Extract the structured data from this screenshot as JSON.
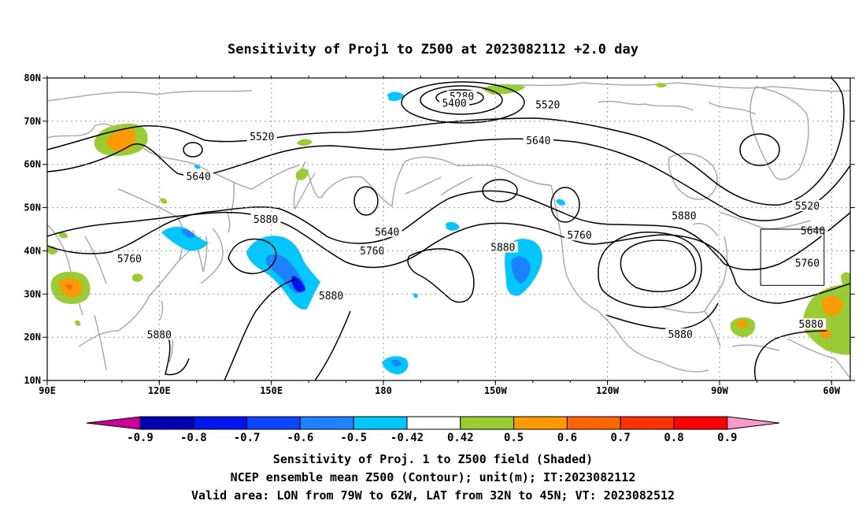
{
  "title": "Sensitivity of Proj1 to Z500 at 2023082112 +2.0 day",
  "map": {
    "lon_range": [
      90,
      305
    ],
    "lat_range": [
      10,
      80
    ],
    "lat_ticks": [
      {
        "value": 10,
        "label": "10N"
      },
      {
        "value": 20,
        "label": "20N"
      },
      {
        "value": 30,
        "label": "30N"
      },
      {
        "value": 40,
        "label": "40N"
      },
      {
        "value": 50,
        "label": "50N"
      },
      {
        "value": 60,
        "label": "60N"
      },
      {
        "value": 70,
        "label": "70N"
      },
      {
        "value": 80,
        "label": "80N"
      }
    ],
    "lon_ticks": [
      {
        "value": 90,
        "label": "90E"
      },
      {
        "value": 120,
        "label": "120E"
      },
      {
        "value": 150,
        "label": "150E"
      },
      {
        "value": 180,
        "label": "180"
      },
      {
        "value": 210,
        "label": "150W"
      },
      {
        "value": 240,
        "label": "120W"
      },
      {
        "value": 270,
        "label": "90W"
      },
      {
        "value": 300,
        "label": "60W"
      }
    ],
    "verification_box": {
      "lon": [
        281,
        298
      ],
      "lat": [
        32,
        45
      ]
    },
    "contour_labels": [
      {
        "text": "5280",
        "lon": 201,
        "lat": 75.6
      },
      {
        "text": "5400",
        "lon": 199,
        "lat": 74.1
      },
      {
        "text": "5520",
        "lon": 224,
        "lat": 73.7
      },
      {
        "text": "5520",
        "lon": 147.5,
        "lat": 66.3
      },
      {
        "text": "5640",
        "lon": 221.5,
        "lat": 65.4
      },
      {
        "text": "5640",
        "lon": 130.5,
        "lat": 57.1
      },
      {
        "text": "5880",
        "lon": 148.5,
        "lat": 47.2
      },
      {
        "text": "5640",
        "lon": 181,
        "lat": 44.3
      },
      {
        "text": "5760",
        "lon": 177,
        "lat": 39.9
      },
      {
        "text": "5880",
        "lon": 212,
        "lat": 40.7
      },
      {
        "text": "5760",
        "lon": 232.5,
        "lat": 43.5
      },
      {
        "text": "5880",
        "lon": 260.5,
        "lat": 48.0
      },
      {
        "text": "5520",
        "lon": 293.5,
        "lat": 50.3
      },
      {
        "text": "5640",
        "lon": 295,
        "lat": 44.5
      },
      {
        "text": "5760",
        "lon": 293.5,
        "lat": 37.1
      },
      {
        "text": "5760",
        "lon": 112,
        "lat": 38.1
      },
      {
        "text": "5880",
        "lon": 166,
        "lat": 29.5
      },
      {
        "text": "5880",
        "lon": 120,
        "lat": 20.5
      },
      {
        "text": "5880",
        "lon": 259.5,
        "lat": 20.6
      },
      {
        "text": "5880",
        "lon": 294.5,
        "lat": 22.9
      }
    ]
  },
  "colorbar": {
    "levels": [
      {
        "label": "-0.9",
        "color": "#cc0099"
      },
      {
        "label": "-0.8",
        "color": "#0000b4"
      },
      {
        "label": "-0.7",
        "color": "#0014f0"
      },
      {
        "label": "-0.6",
        "color": "#0a46ff"
      },
      {
        "label": "-0.5",
        "color": "#1e82ff"
      },
      {
        "label": "-0.42",
        "color": "#00c8ff"
      },
      {
        "label": "0.42",
        "color": "#ffffff"
      },
      {
        "label": "0.5",
        "color": "#9acd32"
      },
      {
        "label": "0.6",
        "color": "#ff9900"
      },
      {
        "label": "0.7",
        "color": "#ff6600"
      },
      {
        "label": "0.8",
        "color": "#ff3300"
      },
      {
        "label": "0.9",
        "color": "#ff0000"
      }
    ],
    "last_color": "#ff99cc"
  },
  "footer": {
    "line1": "Sensitivity of Proj. 1 to Z500 field (Shaded)",
    "line2": "NCEP ensemble mean Z500 (Contour); unit(m); IT:2023082112",
    "line3": "Valid area: LON from 79W to 62W, LAT from 32N to 45N; VT: 2023082512"
  }
}
